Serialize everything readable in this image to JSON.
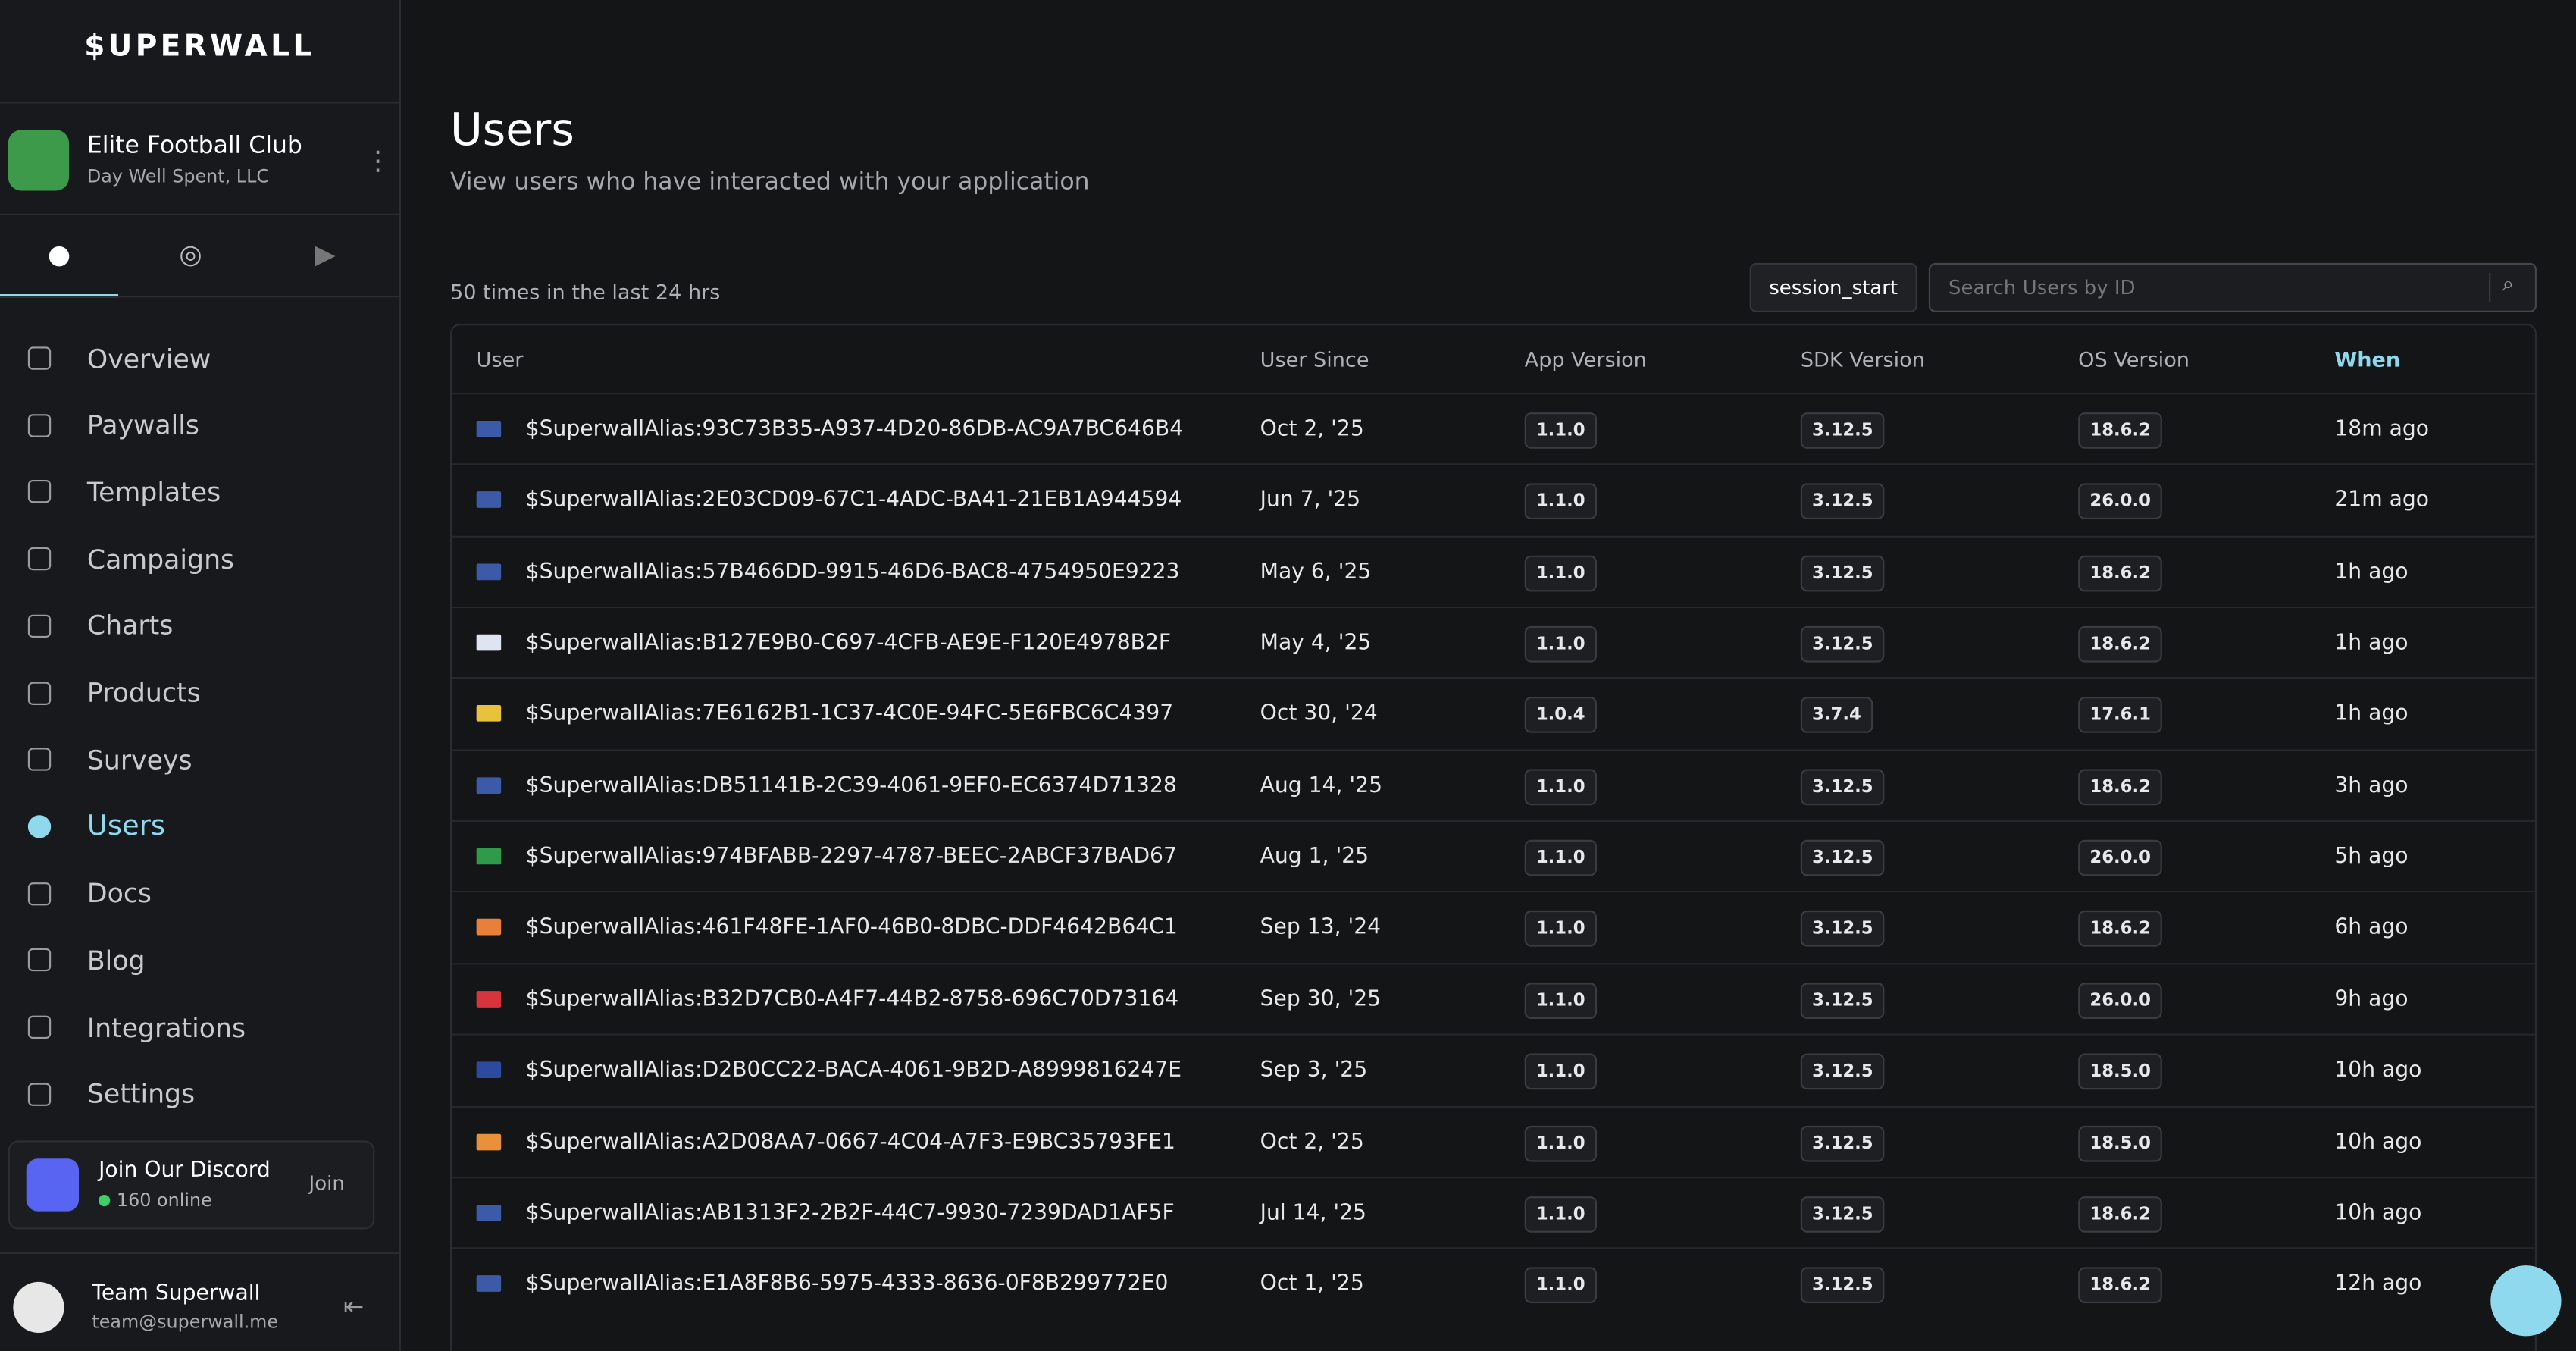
{
  "sidebar": {
    "logo": "$UPERWALL",
    "app": {
      "name": "Elite Football Club",
      "org": "Day Well Spent, LLC"
    },
    "nav": [
      "Overview",
      "Paywalls",
      "Templates",
      "Campaigns",
      "Charts",
      "Products",
      "Surveys",
      "Users",
      "Docs",
      "Blog",
      "Integrations",
      "Settings"
    ],
    "discord": {
      "title": "Join Our Discord",
      "online": "160 online",
      "button": "Join"
    },
    "user": {
      "name": "Team Superwall",
      "email": "team@superwall.me"
    }
  },
  "header": {
    "title": "Users",
    "subtitle": "View users who have interacted with your application"
  },
  "toolbar": {
    "count": "50 times in the last 24 hrs",
    "event": "session_start",
    "search_placeholder": "Search Users by ID"
  },
  "table": {
    "columns": [
      "User",
      "User Since",
      "App Version",
      "SDK Version",
      "OS Version",
      "When"
    ],
    "rows": [
      [
        "$SuperwallAlias:93C73B35-A937-4D20-86DB-AC9A7BC646B4",
        "Oct 2, '25",
        "1.1.0",
        "3.12.5",
        "18.6.2",
        "18m ago"
      ],
      [
        "$SuperwallAlias:2E03CD09-67C1-4ADC-BA41-21EB1A944594",
        "Jun 7, '25",
        "1.1.0",
        "3.12.5",
        "26.0.0",
        "21m ago"
      ],
      [
        "$SuperwallAlias:57B466DD-9915-46D6-BAC8-4754950E9223",
        "May 6, '25",
        "1.1.0",
        "3.12.5",
        "18.6.2",
        "1h ago"
      ],
      [
        "$SuperwallAlias:B127E9B0-C697-4CFB-AE9E-F120E4978B2F",
        "May 4, '25",
        "1.1.0",
        "3.12.5",
        "18.6.2",
        "1h ago"
      ],
      [
        "$SuperwallAlias:7E6162B1-1C37-4C0E-94FC-5E6FBC6C4397",
        "Oct 30, '24",
        "1.0.4",
        "3.7.4",
        "17.6.1",
        "1h ago"
      ],
      [
        "$SuperwallAlias:DB51141B-2C39-4061-9EF0-EC6374D71328",
        "Aug 14, '25",
        "1.1.0",
        "3.12.5",
        "18.6.2",
        "3h ago"
      ],
      [
        "$SuperwallAlias:974BFABB-2297-4787-BEEC-2ABCF37BAD67",
        "Aug 1, '25",
        "1.1.0",
        "3.12.5",
        "26.0.0",
        "5h ago"
      ],
      [
        "$SuperwallAlias:461F48FE-1AF0-46B0-8DBC-DDF4642B64C1",
        "Sep 13, '24",
        "1.1.0",
        "3.12.5",
        "18.6.2",
        "6h ago"
      ],
      [
        "$SuperwallAlias:B32D7CB0-A4F7-44B2-8758-696C70D73164",
        "Sep 30, '25",
        "1.1.0",
        "3.12.5",
        "26.0.0",
        "9h ago"
      ],
      [
        "$SuperwallAlias:D2B0CC22-BACA-4061-9B2D-A8999816247E",
        "Sep 3, '25",
        "1.1.0",
        "3.12.5",
        "18.5.0",
        "10h ago"
      ],
      [
        "$SuperwallAlias:A2D08AA7-0667-4C04-A7F3-E9BC35793FE1",
        "Oct 2, '25",
        "1.1.0",
        "3.12.5",
        "18.5.0",
        "10h ago"
      ],
      [
        "$SuperwallAlias:AB1313F2-2B2F-44C7-9930-7239DAD1AF5F",
        "Jul 14, '25",
        "1.1.0",
        "3.12.5",
        "18.6.2",
        "10h ago"
      ],
      [
        "$SuperwallAlias:E1A8F8B6-5975-4333-8636-0F8B299772E0",
        "Oct 1, '25",
        "1.1.0",
        "3.12.5",
        "18.6.2",
        "12h ago"
      ]
    ]
  }
}
